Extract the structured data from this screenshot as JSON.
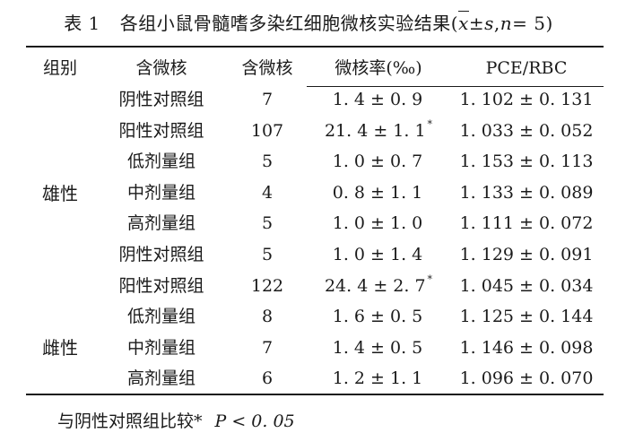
{
  "caption": {
    "number": "表 1",
    "title_prefix": "各组小鼠骨髓嗜多染红细胞微核实验结果(",
    "xbar": "x",
    "stat_rest": "±",
    "s": "s",
    "comma": ",",
    "n": "n",
    "n_eq": "= 5)"
  },
  "headers": [
    "组别",
    "含微核",
    "含微核",
    "微核率(‰)",
    "PCE/RBC"
  ],
  "sex_labels": [
    "雄性",
    "雌性"
  ],
  "rows": [
    {
      "group": "阴性对照组",
      "count": "7",
      "rate": "1. 4 ± 0. 9",
      "mark": "",
      "pce": "1. 102 ± 0. 131"
    },
    {
      "group": "阳性对照组",
      "count": "107",
      "rate": "21. 4 ± 1. 1",
      "mark": "*",
      "pce": "1. 033 ± 0. 052"
    },
    {
      "group": "低剂量组",
      "count": "5",
      "rate": "1. 0 ± 0. 7",
      "mark": "",
      "pce": "1. 153 ± 0. 113"
    },
    {
      "group": "中剂量组",
      "count": "4",
      "rate": "0. 8 ± 1. 1",
      "mark": "",
      "pce": "1. 133 ± 0. 089"
    },
    {
      "group": "高剂量组",
      "count": "5",
      "rate": "1. 0 ± 1. 0",
      "mark": "",
      "pce": "1. 111 ± 0. 072"
    },
    {
      "group": "阴性对照组",
      "count": "5",
      "rate": "1. 0 ± 1. 4",
      "mark": "",
      "pce": "1. 129 ± 0. 091"
    },
    {
      "group": "阳性对照组",
      "count": "122",
      "rate": "24. 4 ± 2. 7",
      "mark": "*",
      "pce": "1. 045 ± 0. 034"
    },
    {
      "group": "低剂量组",
      "count": "8",
      "rate": "1. 6 ± 0. 5",
      "mark": "",
      "pce": "1. 125 ± 0. 144"
    },
    {
      "group": "中剂量组",
      "count": "7",
      "rate": "1. 4 ± 0. 5",
      "mark": "",
      "pce": "1. 146 ± 0. 098"
    },
    {
      "group": "高剂量组",
      "count": "6",
      "rate": "1. 2 ± 1. 1",
      "mark": "",
      "pce": "1. 096 ± 0. 070"
    }
  ],
  "footnote": {
    "text": "与阴性对照组比较*",
    "p": "P < 0. 05"
  }
}
